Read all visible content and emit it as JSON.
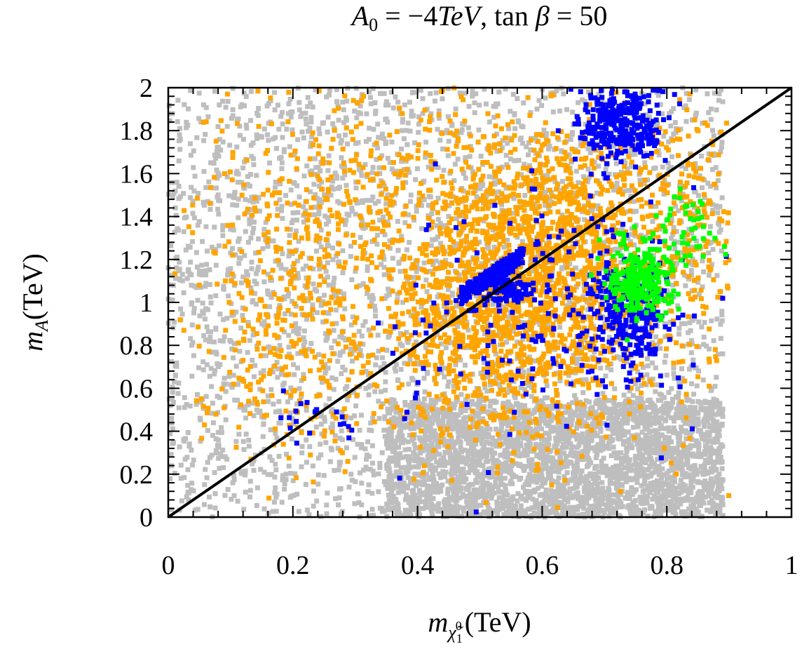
{
  "chart_data": {
    "type": "scatter",
    "title": {
      "lhs": "A",
      "lhs_sub": "0",
      "eq1": " = −4",
      "unit": "TeV",
      "sep": ", tan ",
      "beta": "β",
      "eq2": " = 50"
    },
    "xlabel": {
      "sym": "m",
      "sub": "χ̃",
      "subsub": "1",
      "supsup": "0",
      "unit": "(TeV)"
    },
    "ylabel": {
      "sym": "m",
      "sub": "A",
      "unit": "(TeV)"
    },
    "xlim": [
      0,
      1
    ],
    "ylim": [
      0,
      2
    ],
    "xticks": [
      0,
      0.2,
      0.4,
      0.6,
      0.8,
      1
    ],
    "yticks": [
      0,
      0.2,
      0.4,
      0.6,
      0.8,
      1,
      1.2,
      1.4,
      1.6,
      1.8,
      2
    ],
    "xtick_labels": [
      "0",
      "0.2",
      "0.4",
      "0.6",
      "0.8",
      "1"
    ],
    "ytick_labels": [
      "0",
      "0.2",
      "0.4",
      "0.6",
      "0.8",
      "1",
      "1.2",
      "1.4",
      "1.6",
      "1.8",
      "2"
    ],
    "reference_line": {
      "label": "m_A = 2 m_chi",
      "x": [
        0,
        1
      ],
      "y": [
        0,
        2
      ],
      "color": "#000000"
    },
    "series": [
      {
        "name": "all points",
        "color": "#bebebe",
        "regions": [
          {
            "x": [
              0,
              0.89
            ],
            "y": [
              0,
              2
            ],
            "n": 3200
          },
          {
            "x": [
              0.35,
              0.89
            ],
            "y": [
              0,
              0.55
            ],
            "n": 2600
          }
        ]
      },
      {
        "name": "orange points",
        "color": "#ffa500",
        "regions": [
          {
            "cx": 0.55,
            "cy": 0.95,
            "sx": 0.11,
            "sy": 0.28,
            "n": 1500
          },
          {
            "cx": 0.62,
            "cy": 1.4,
            "sx": 0.1,
            "sy": 0.25,
            "n": 700
          },
          {
            "cx": 0.18,
            "cy": 0.95,
            "sx": 0.07,
            "sy": 0.35,
            "n": 320
          },
          {
            "cx": 0.85,
            "cy": 1.3,
            "sx": 0.05,
            "sy": 0.35,
            "n": 200
          },
          {
            "cx": 0.3,
            "cy": 1.55,
            "sx": 0.12,
            "sy": 0.25,
            "n": 220
          }
        ]
      },
      {
        "name": "blue points",
        "color": "#0000ff",
        "regions": [
          {
            "cx": 0.73,
            "cy": 1.83,
            "sx": 0.035,
            "sy": 0.09,
            "n": 320
          },
          {
            "band": true,
            "x": [
              0.47,
              0.57
            ],
            "y": [
              1.03,
              1.22
            ],
            "n": 260
          },
          {
            "cx": 0.545,
            "cy": 1.06,
            "sx": 0.02,
            "sy": 0.03,
            "n": 90
          },
          {
            "cx": 0.74,
            "cy": 0.95,
            "sx": 0.03,
            "sy": 0.12,
            "n": 280
          },
          {
            "cx": 0.6,
            "cy": 0.95,
            "sx": 0.12,
            "sy": 0.3,
            "n": 180
          },
          {
            "cx": 0.25,
            "cy": 0.45,
            "sx": 0.04,
            "sy": 0.07,
            "n": 20
          }
        ]
      },
      {
        "name": "green points",
        "color": "#00ff00",
        "regions": [
          {
            "cx": 0.76,
            "cy": 1.12,
            "sx": 0.025,
            "sy": 0.09,
            "n": 260
          },
          {
            "cx": 0.83,
            "cy": 1.35,
            "sx": 0.03,
            "sy": 0.1,
            "n": 40
          }
        ]
      }
    ]
  }
}
